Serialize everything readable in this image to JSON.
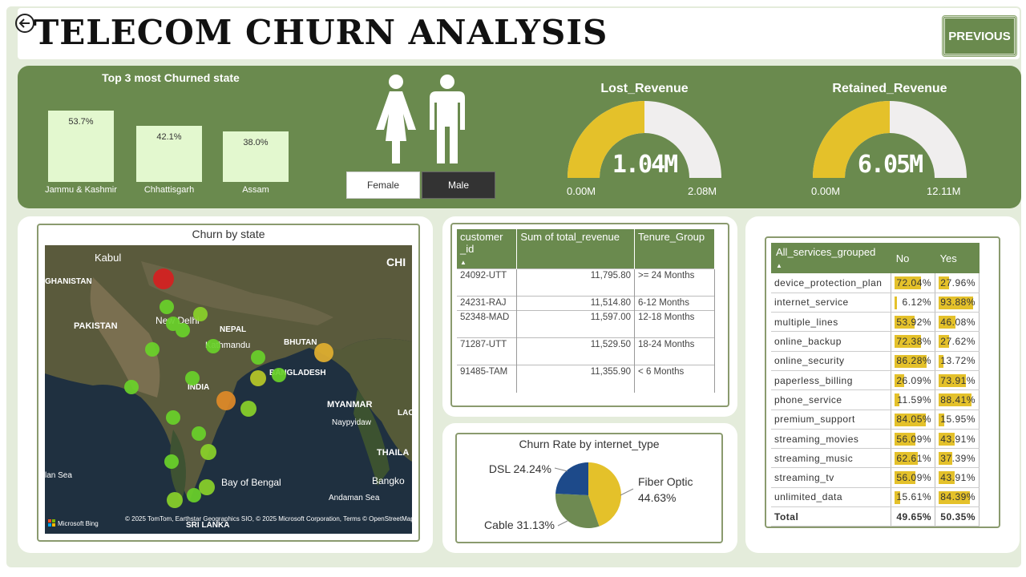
{
  "header": {
    "title": "TELECOM CHURN ANALYSIS",
    "previous_label": "PREVIOUS"
  },
  "top_states": {
    "title": "Top 3 most Churned state",
    "chart_data": {
      "type": "bar",
      "categories": [
        "Jammu & Kashmir",
        "Chhattisgarh",
        "Assam"
      ],
      "values": [
        53.7,
        42.1,
        38.0
      ],
      "labels": [
        "53.7%",
        "42.1%",
        "38.0%"
      ],
      "ylim": [
        0,
        60
      ]
    }
  },
  "gender": {
    "female": "Female",
    "male": "Male",
    "selected": "Male"
  },
  "lost_revenue": {
    "label": "Lost_Revenue",
    "value": "1.04M",
    "min": "0.00M",
    "max": "2.08M",
    "fraction": 0.5
  },
  "retained_revenue": {
    "label": "Retained_Revenue",
    "value": "6.05M",
    "min": "0.00M",
    "max": "12.11M",
    "fraction": 0.5
  },
  "map": {
    "title": "Churn by state",
    "labels": [
      "Kabul",
      "GHANISTAN",
      "PAKISTAN",
      "New Delhi",
      "NEPAL",
      "Kathmandu",
      "BHUTAN",
      "BANGLADESH",
      "INDIA",
      "MYANMAR",
      "Naypyidaw",
      "THAILA",
      "Bay of Bengal",
      "Andaman Sea",
      "Bangko",
      "lan Sea",
      "SRI LANKA",
      "CHI",
      "LAC"
    ],
    "attribution": "© 2025 TomTom, Earthstar Geographics SIO, © 2025 Microsoft Corporation, Terms © OpenStreetMap",
    "bing": "Microsoft Bing"
  },
  "customer_table": {
    "headers": [
      "customer _id",
      "Sum of total_revenue",
      "Tenure_Group"
    ],
    "rows": [
      [
        "24092-UTT",
        "11,795.80",
        ">= 24 Months"
      ],
      [
        "24231-RAJ",
        "11,514.80",
        "6-12 Months"
      ],
      [
        "52348-MAD",
        "11,597.00",
        "12-18 Months"
      ],
      [
        "71287-UTT",
        "11,529.50",
        "18-24 Months"
      ],
      [
        "91485-TAM",
        "11,355.90",
        "< 6 Months"
      ]
    ]
  },
  "internet_type": {
    "title": "Churn Rate by internet_type",
    "chart_data": {
      "type": "pie",
      "categories": [
        "Fiber Optic",
        "Cable",
        "DSL"
      ],
      "values": [
        44.63,
        31.13,
        24.24
      ],
      "labels": [
        "Fiber Optic 44.63%",
        "Cable 31.13%",
        "DSL 24.24%"
      ],
      "colors": [
        "#e4c12a",
        "#6e8a52",
        "#1d4a8a"
      ]
    }
  },
  "services_table": {
    "headers": [
      "All_services_grouped",
      "No",
      "Yes"
    ],
    "rows": [
      {
        "name": "device_protection_plan",
        "no": "72.04%",
        "yes": "27.96%",
        "no_v": 72.04,
        "yes_v": 27.96
      },
      {
        "name": "internet_service",
        "no": "6.12%",
        "yes": "93.88%",
        "no_v": 6.12,
        "yes_v": 93.88
      },
      {
        "name": "multiple_lines",
        "no": "53.92%",
        "yes": "46.08%",
        "no_v": 53.92,
        "yes_v": 46.08
      },
      {
        "name": "online_backup",
        "no": "72.38%",
        "yes": "27.62%",
        "no_v": 72.38,
        "yes_v": 27.62
      },
      {
        "name": "online_security",
        "no": "86.28%",
        "yes": "13.72%",
        "no_v": 86.28,
        "yes_v": 13.72
      },
      {
        "name": "paperless_billing",
        "no": "26.09%",
        "yes": "73.91%",
        "no_v": 26.09,
        "yes_v": 73.91
      },
      {
        "name": "phone_service",
        "no": "11.59%",
        "yes": "88.41%",
        "no_v": 11.59,
        "yes_v": 88.41
      },
      {
        "name": "premium_support",
        "no": "84.05%",
        "yes": "15.95%",
        "no_v": 84.05,
        "yes_v": 15.95
      },
      {
        "name": "streaming_movies",
        "no": "56.09%",
        "yes": "43.91%",
        "no_v": 56.09,
        "yes_v": 43.91
      },
      {
        "name": "streaming_music",
        "no": "62.61%",
        "yes": "37.39%",
        "no_v": 62.61,
        "yes_v": 37.39
      },
      {
        "name": "streaming_tv",
        "no": "56.09%",
        "yes": "43.91%",
        "no_v": 56.09,
        "yes_v": 43.91
      },
      {
        "name": "unlimited_data",
        "no": "15.61%",
        "yes": "84.39%",
        "no_v": 15.61,
        "yes_v": 84.39
      }
    ],
    "total": {
      "name": "Total",
      "no": "49.65%",
      "yes": "50.35%"
    }
  },
  "colors": {
    "accent": "#6a8a4e",
    "gauge": "#e4c12a",
    "gauge_track": "#f0eeee",
    "bar": "#e3f8cf"
  }
}
